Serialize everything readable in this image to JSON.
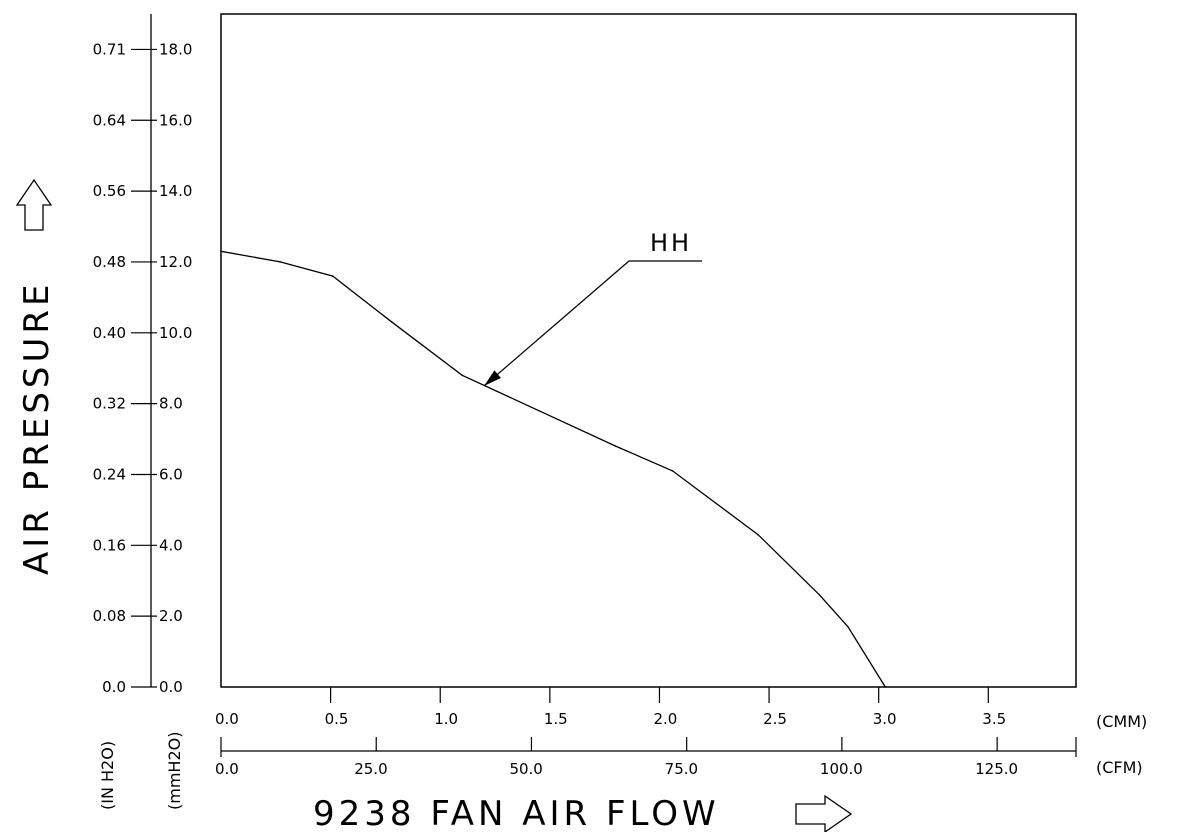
{
  "chart_data": {
    "type": "line",
    "title": "",
    "xlabel": "9238 FAN AIR FLOW",
    "ylabel": "AIR PRESSURE",
    "x_axis_primary": {
      "unit": "(CMM)",
      "range": [
        0,
        3.9
      ],
      "ticks": [
        0.0,
        0.5,
        1.0,
        1.5,
        2.0,
        2.5,
        3.0,
        3.5
      ],
      "tick_labels": [
        "0.0",
        "0.5",
        "1.0",
        "1.5",
        "2.0",
        "2.5",
        "3.0",
        "3.5"
      ]
    },
    "x_axis_secondary": {
      "unit": "(CFM)",
      "range": [
        0,
        137.7
      ],
      "ticks": [
        0,
        25,
        50,
        75,
        100,
        125
      ],
      "tick_labels": [
        "0.0",
        "25.0",
        "50.0",
        "75.0",
        "100.0",
        "125.0"
      ]
    },
    "y_axis_primary": {
      "unit": "(mmH2O)",
      "range": [
        0,
        19
      ],
      "ticks": [
        0,
        2,
        4,
        6,
        8,
        10,
        12,
        14,
        16,
        18
      ],
      "tick_labels": [
        "0.0",
        "2.0",
        "4.0",
        "6.0",
        "8.0",
        "10.0",
        "12.0",
        "14.0",
        "16.0",
        "18.0"
      ]
    },
    "y_axis_secondary": {
      "unit": "(IN H2O)",
      "tick_labels": [
        "0.0",
        "0.08",
        "0.16",
        "0.24",
        "0.32",
        "0.40",
        "0.48",
        "0.56",
        "0.64",
        "0.71"
      ]
    },
    "series": [
      {
        "name": "HH",
        "x": [
          0.0,
          0.27,
          0.51,
          0.78,
          1.1,
          1.45,
          1.8,
          2.06,
          2.45,
          2.73,
          2.86,
          3.03
        ],
        "y": [
          12.3,
          12.0,
          11.6,
          10.3,
          8.8,
          7.8,
          6.8,
          6.1,
          4.3,
          2.6,
          1.7,
          0.0
        ]
      }
    ],
    "annotation": {
      "text": "HH",
      "points_to": {
        "x": 1.2,
        "y": 8.5
      }
    },
    "grid": false
  }
}
